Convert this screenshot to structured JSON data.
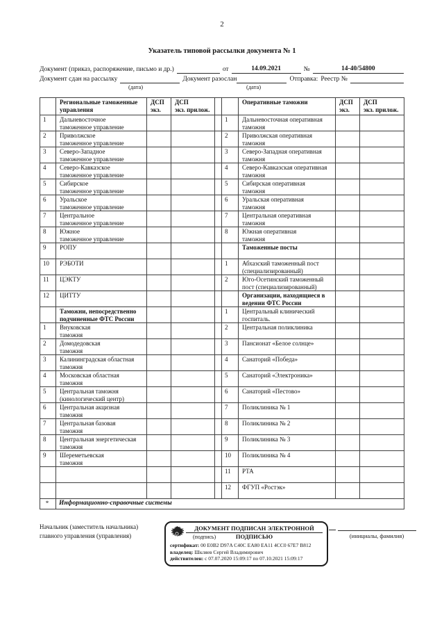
{
  "page": {
    "number": "2",
    "title": "Указатель типовой рассылки документа № 1"
  },
  "form": {
    "doc_label": "Документ (приказ, распоряжение, письмо и др.)",
    "from_label": "от",
    "date_value": "14.09.2021",
    "no_label": "№",
    "no_value": "14-40/54800",
    "sent_label": "Документ сдан на рассылку",
    "dispatched_label": "Документ разослан",
    "sending_label": "Отправка:",
    "registry_label": "Реестр №",
    "date_caption": "(дата)"
  },
  "table": {
    "headers": {
      "left_org": "Региональные таможенные\nуправления",
      "dsp_ex": "ДСП\nэкз.",
      "dsp_pril": "ДСП\nэкз. прилож.",
      "right_org": "Оперативные таможни"
    },
    "rows": [
      {
        "l_no": "1",
        "l_text": "Дальневосточное\nтаможенное управление",
        "r_no": "1",
        "r_text": "Дальневосточная оперативная\nтаможня"
      },
      {
        "l_no": "2",
        "l_text": "Приволжское\nтаможенное управление",
        "r_no": "2",
        "r_text": "Приволжская оперативная\nтаможня"
      },
      {
        "l_no": "3",
        "l_text": "Северо-Западное\nтаможенное управление",
        "r_no": "3",
        "r_text": "Северо-Западная оперативная\nтаможня"
      },
      {
        "l_no": "4",
        "l_text": "Северо-Кавказское\nтаможенное управление",
        "r_no": "4",
        "r_text": "Северо-Кавказская оперативная\nтаможня"
      },
      {
        "l_no": "5",
        "l_text": "Сибирское\nтаможенное управление",
        "r_no": "5",
        "r_text": "Сибирская оперативная\nтаможня"
      },
      {
        "l_no": "6",
        "l_text": "Уральское\nтаможенное управление",
        "r_no": "6",
        "r_text": "Уральская оперативная\nтаможня"
      },
      {
        "l_no": "7",
        "l_text": "Центральное\nтаможенное управление",
        "r_no": "7",
        "r_text": "Центральная оперативная\nтаможня"
      },
      {
        "l_no": "8",
        "l_text": "Южное\nтаможенное управление",
        "r_no": "8",
        "r_text": "Южная оперативная\nтаможня"
      },
      {
        "l_no": "9",
        "l_text": "РОПУ",
        "r_no": "",
        "r_text": "Таможенные посты",
        "r_section": true
      },
      {
        "l_no": "10",
        "l_text": "РЭБОТИ",
        "r_no": "1",
        "r_text": "Абхазский таможенный пост\n(специализированный)"
      },
      {
        "l_no": "11",
        "l_text": "ЦЭКТУ",
        "r_no": "2",
        "r_text": "Юго-Осетинский таможенный\nпост (специализированный)"
      },
      {
        "l_no": "12",
        "l_text": "ЦИТТУ",
        "r_no": "",
        "r_text": "Организации, находящиеся в\nведении ФТС России",
        "r_section": true
      },
      {
        "l_no": "",
        "l_text": "Таможни, непосредственно\nподчиненные ФТС России",
        "l_section": true,
        "r_no": "1",
        "r_text": "Центральный клинический\nгоспиталь."
      },
      {
        "l_no": "1",
        "l_text": "Внуковская\nтаможня",
        "r_no": "2",
        "r_text": "Центральная поликлиника"
      },
      {
        "l_no": "2",
        "l_text": "Домодедовская\nтаможня",
        "r_no": "3",
        "r_text": "Пансионат «Белое солнце»"
      },
      {
        "l_no": "3",
        "l_text": "Калининградская областная\nтаможня",
        "r_no": "4",
        "r_text": "Санаторий «Победа»"
      },
      {
        "l_no": "4",
        "l_text": "Московская областная\nтаможня",
        "r_no": "5",
        "r_text": "Санаторий «Электроника»"
      },
      {
        "l_no": "5",
        "l_text": "Центральная таможня\n(кинологический центр)",
        "r_no": "6",
        "r_text": "Санаторий «Пестово»"
      },
      {
        "l_no": "6",
        "l_text": "Центральная акцизная\nтаможня",
        "r_no": "7",
        "r_text": "Поликлиника № 1"
      },
      {
        "l_no": "7",
        "l_text": "Центральная базовая\nтаможня",
        "r_no": "8",
        "r_text": "Поликлиника № 2"
      },
      {
        "l_no": "8",
        "l_text": "Центральная энергетическая\nтаможня",
        "r_no": "9",
        "r_text": "Поликлиника № 3"
      },
      {
        "l_no": "9",
        "l_text": "Шереметьевская\nтаможня",
        "r_no": "10",
        "r_text": "Поликлиника № 4"
      },
      {
        "l_no": "",
        "l_text": "",
        "r_no": "11",
        "r_text": "РТА"
      },
      {
        "l_no": "",
        "l_text": "",
        "r_no": "12",
        "r_text": "ФГУП «Ростэк»"
      }
    ],
    "footer": {
      "marker": "*",
      "label": "Информационно-справочные системы"
    }
  },
  "signature": {
    "left_title": "Начальник (заместитель начальника)\nглавного управления (управления)",
    "initials_caption": "(инициалы, фамилия)",
    "stamp": {
      "title_line1": "ДОКУМЕНТ ПОДПИСАН ЭЛЕКТРОННОЙ",
      "title_line2": "ПОДПИСЬЮ",
      "sign_caption": "(подпись)",
      "cert_label": "сертификат:",
      "cert_value": "00 E0B2 D97A C40C EA80 EA11 4CC0 67E7 B812",
      "owner_label": "владелец:",
      "owner_value": "Шкляев Сергей Владимирович",
      "valid_label": "действителен:",
      "valid_value": "с 07.07.2020 15:09:17 по 07.10.2021 15:09:17"
    }
  }
}
